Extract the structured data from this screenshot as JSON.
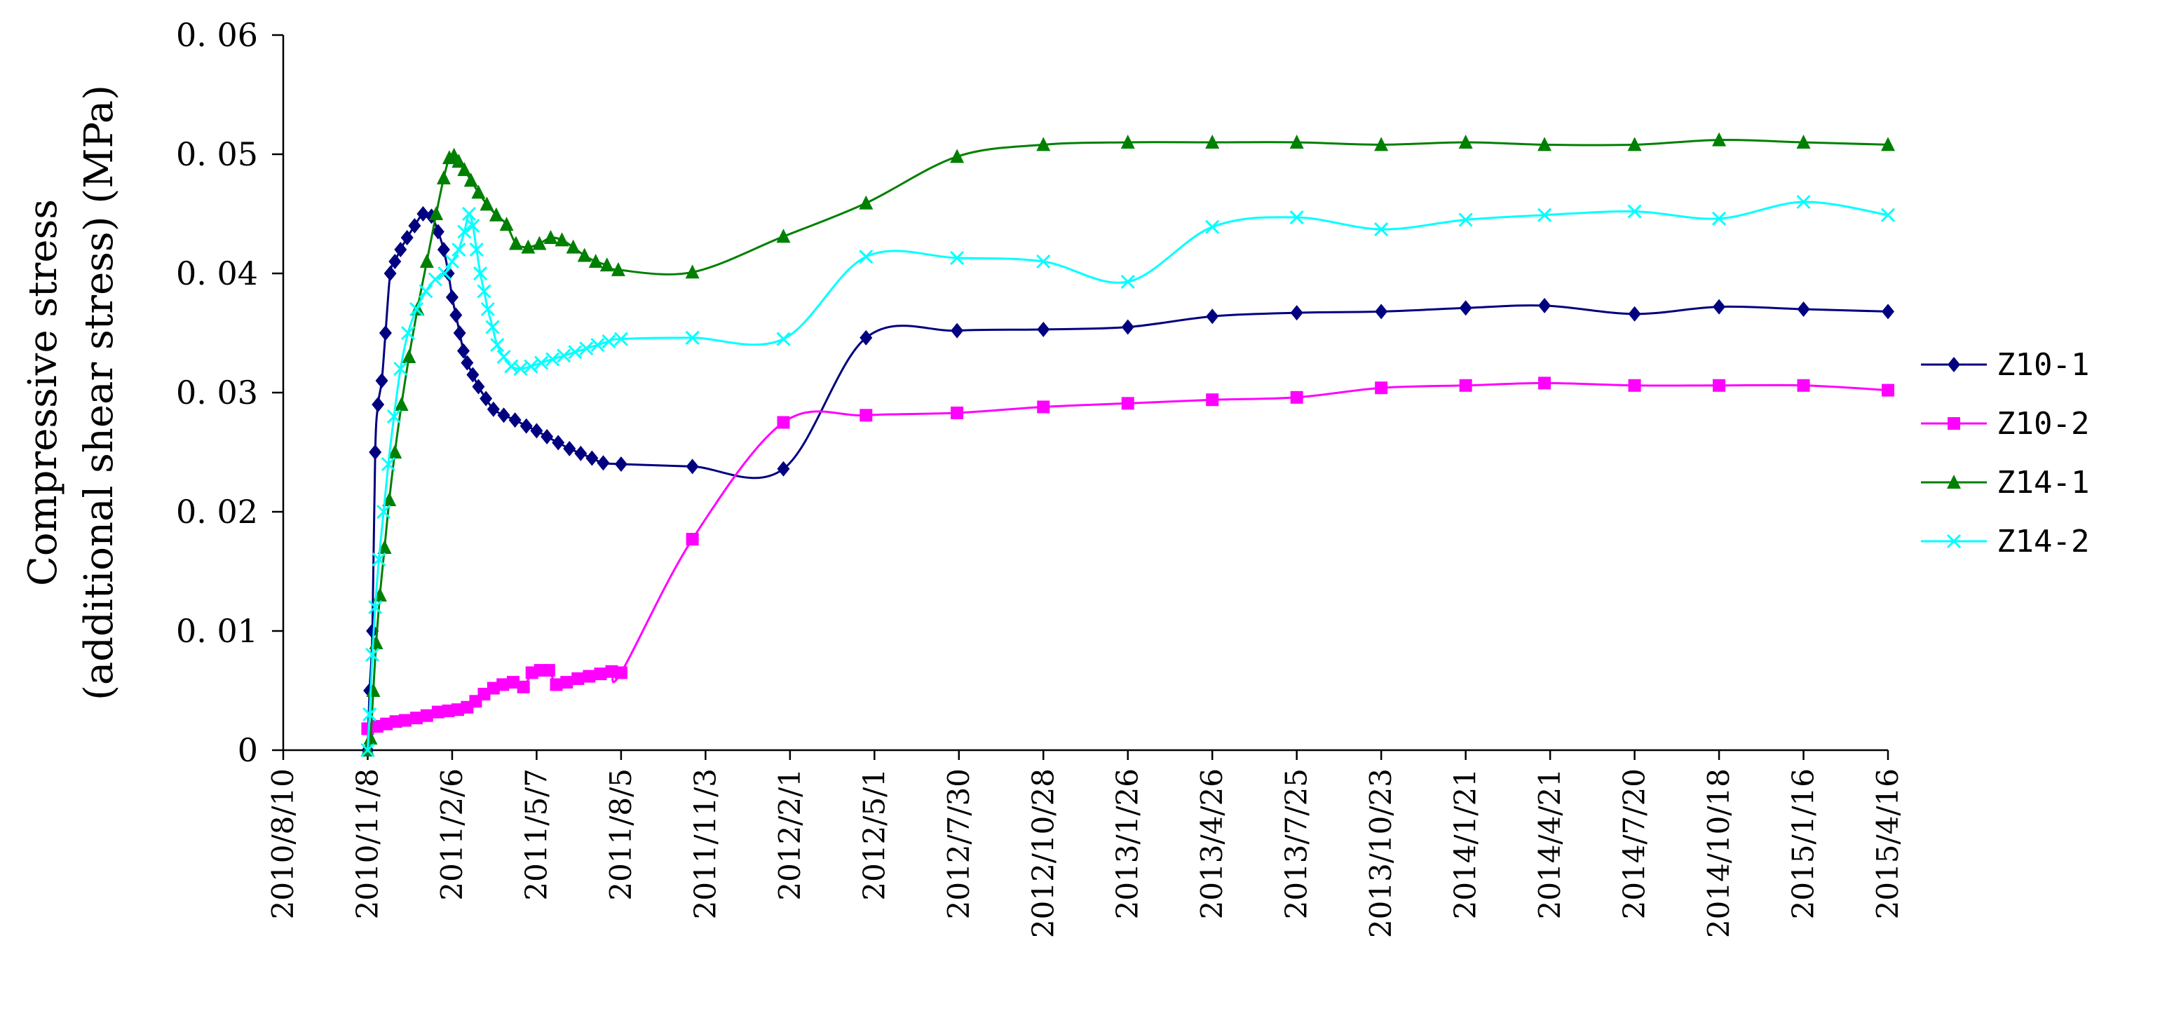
{
  "chart_data": {
    "type": "line",
    "ylabel": [
      "Compressive stress",
      "(additional shear stress) (MPa)"
    ],
    "ylim": [
      0,
      0.06
    ],
    "yticks": [
      0,
      0.01,
      0.02,
      0.03,
      0.04,
      0.05,
      0.06
    ],
    "ytick_labels": [
      "0",
      "0. 01",
      "0. 02",
      "0. 03",
      "0. 04",
      "0. 05",
      "0. 06"
    ],
    "xlim": [
      "2010/8/10",
      "2015/4/16"
    ],
    "xtick_labels": [
      "2010/8/10",
      "2010/11/8",
      "2011/2/6",
      "2011/5/7",
      "2011/8/5",
      "2011/11/3",
      "2012/2/1",
      "2012/5/1",
      "2012/7/30",
      "2012/10/28",
      "2013/1/26",
      "2013/4/26",
      "2013/7/25",
      "2013/10/23",
      "2014/1/21",
      "2014/4/21",
      "2014/7/20",
      "2014/10/18",
      "2015/1/16",
      "2015/4/16"
    ],
    "grid": false,
    "legend_position": "right",
    "series": [
      {
        "name": "Z10-1",
        "color": "#000080",
        "marker": "diamond",
        "points": [
          [
            "2010/11/8",
            0.0
          ],
          [
            "2010/11/10",
            0.005
          ],
          [
            "2010/11/13",
            0.01
          ],
          [
            "2010/11/16",
            0.025
          ],
          [
            "2010/11/19",
            0.029
          ],
          [
            "2010/11/23",
            0.031
          ],
          [
            "2010/11/27",
            0.035
          ],
          [
            "2010/12/2",
            0.04
          ],
          [
            "2010/12/7",
            0.041
          ],
          [
            "2010/12/13",
            0.042
          ],
          [
            "2010/12/20",
            0.043
          ],
          [
            "2010/12/28",
            0.044
          ],
          [
            "2011/1/6",
            0.045
          ],
          [
            "2011/1/15",
            0.0448
          ],
          [
            "2011/1/22",
            0.0435
          ],
          [
            "2011/1/28",
            0.042
          ],
          [
            "2011/2/2",
            0.04
          ],
          [
            "2011/2/6",
            0.038
          ],
          [
            "2011/2/10",
            0.0365
          ],
          [
            "2011/2/14",
            0.035
          ],
          [
            "2011/2/18",
            0.0335
          ],
          [
            "2011/2/22",
            0.0325
          ],
          [
            "2011/2/28",
            0.0315
          ],
          [
            "2011/3/6",
            0.0305
          ],
          [
            "2011/3/14",
            0.0295
          ],
          [
            "2011/3/22",
            0.0286
          ],
          [
            "2011/4/2",
            0.0281
          ],
          [
            "2011/4/14",
            0.0277
          ],
          [
            "2011/4/26",
            0.0272
          ],
          [
            "2011/5/7",
            0.0268
          ],
          [
            "2011/5/18",
            0.0263
          ],
          [
            "2011/5/30",
            0.0258
          ],
          [
            "2011/6/11",
            0.0253
          ],
          [
            "2011/6/23",
            0.0249
          ],
          [
            "2011/7/5",
            0.0245
          ],
          [
            "2011/7/17",
            0.0241
          ],
          [
            "2011/8/5",
            0.024
          ],
          [
            "2011/10/20",
            0.0238
          ],
          [
            "2012/1/25",
            0.0236
          ],
          [
            "2012/4/22",
            0.0346
          ],
          [
            "2012/7/28",
            0.0352
          ],
          [
            "2012/10/28",
            0.0353
          ],
          [
            "2013/1/26",
            0.0355
          ],
          [
            "2013/4/26",
            0.0364
          ],
          [
            "2013/7/25",
            0.0367
          ],
          [
            "2013/10/23",
            0.0368
          ],
          [
            "2014/1/21",
            0.0371
          ],
          [
            "2014/4/15",
            0.0373
          ],
          [
            "2014/7/20",
            0.0366
          ],
          [
            "2014/10/18",
            0.0372
          ],
          [
            "2015/1/16",
            0.037
          ],
          [
            "2015/4/16",
            0.0368
          ]
        ]
      },
      {
        "name": "Z10-2",
        "color": "#ff00ff",
        "marker": "square",
        "points": [
          [
            "2010/11/8",
            0.0018
          ],
          [
            "2010/11/18",
            0.002
          ],
          [
            "2010/11/28",
            0.0022
          ],
          [
            "2010/12/8",
            0.0024
          ],
          [
            "2010/12/18",
            0.0025
          ],
          [
            "2010/12/30",
            0.0027
          ],
          [
            "2011/1/10",
            0.0029
          ],
          [
            "2011/1/22",
            0.0032
          ],
          [
            "2011/2/2",
            0.0033
          ],
          [
            "2011/2/12",
            0.0034
          ],
          [
            "2011/2/22",
            0.0036
          ],
          [
            "2011/3/3",
            0.0041
          ],
          [
            "2011/3/12",
            0.0047
          ],
          [
            "2011/3/22",
            0.0052
          ],
          [
            "2011/4/1",
            0.0055
          ],
          [
            "2011/4/12",
            0.0057
          ],
          [
            "2011/4/23",
            0.0053
          ],
          [
            "2011/5/2",
            0.0065
          ],
          [
            "2011/5/11",
            0.0067
          ],
          [
            "2011/5/20",
            0.0067
          ],
          [
            "2011/5/28",
            0.0055
          ],
          [
            "2011/6/8",
            0.0057
          ],
          [
            "2011/6/20",
            0.006
          ],
          [
            "2011/7/2",
            0.0062
          ],
          [
            "2011/7/14",
            0.0064
          ],
          [
            "2011/7/26",
            0.0066
          ],
          [
            "2011/8/5",
            0.0065
          ],
          [
            "2011/10/20",
            0.0177
          ],
          [
            "2012/1/25",
            0.0275
          ],
          [
            "2012/4/22",
            0.0281
          ],
          [
            "2012/7/28",
            0.0283
          ],
          [
            "2012/10/28",
            0.0288
          ],
          [
            "2013/1/26",
            0.0291
          ],
          [
            "2013/4/26",
            0.0294
          ],
          [
            "2013/7/25",
            0.0296
          ],
          [
            "2013/10/23",
            0.0304
          ],
          [
            "2014/1/21",
            0.0306
          ],
          [
            "2014/4/15",
            0.0308
          ],
          [
            "2014/7/20",
            0.0306
          ],
          [
            "2014/10/18",
            0.0306
          ],
          [
            "2015/1/16",
            0.0306
          ],
          [
            "2015/4/16",
            0.0302
          ]
        ]
      },
      {
        "name": "Z14-1",
        "color": "#008000",
        "marker": "triangle",
        "points": [
          [
            "2010/11/8",
            0.0
          ],
          [
            "2010/11/11",
            0.001
          ],
          [
            "2010/11/14",
            0.005
          ],
          [
            "2010/11/17",
            0.009
          ],
          [
            "2010/11/21",
            0.013
          ],
          [
            "2010/11/26",
            0.017
          ],
          [
            "2010/12/1",
            0.021
          ],
          [
            "2010/12/7",
            0.025
          ],
          [
            "2010/12/14",
            0.029
          ],
          [
            "2010/12/22",
            0.033
          ],
          [
            "2010/12/31",
            0.037
          ],
          [
            "2011/1/10",
            0.041
          ],
          [
            "2011/1/20",
            0.045
          ],
          [
            "2011/1/28",
            0.048
          ],
          [
            "2011/2/3",
            0.0497
          ],
          [
            "2011/2/8",
            0.0499
          ],
          [
            "2011/2/13",
            0.0494
          ],
          [
            "2011/2/19",
            0.0487
          ],
          [
            "2011/2/26",
            0.0478
          ],
          [
            "2011/3/6",
            0.0468
          ],
          [
            "2011/3/15",
            0.0458
          ],
          [
            "2011/3/25",
            0.0449
          ],
          [
            "2011/4/5",
            0.0441
          ],
          [
            "2011/4/15",
            0.0425
          ],
          [
            "2011/4/28",
            0.0422
          ],
          [
            "2011/5/10",
            0.0425
          ],
          [
            "2011/5/22",
            0.043
          ],
          [
            "2011/6/3",
            0.0428
          ],
          [
            "2011/6/15",
            0.0422
          ],
          [
            "2011/6/27",
            0.0415
          ],
          [
            "2011/7/9",
            0.041
          ],
          [
            "2011/7/21",
            0.0407
          ],
          [
            "2011/8/2",
            0.0403
          ],
          [
            "2011/10/20",
            0.0401
          ],
          [
            "2012/1/25",
            0.0431
          ],
          [
            "2012/4/22",
            0.0459
          ],
          [
            "2012/7/28",
            0.0498
          ],
          [
            "2012/10/28",
            0.0508
          ],
          [
            "2013/1/26",
            0.051
          ],
          [
            "2013/4/26",
            0.051
          ],
          [
            "2013/7/25",
            0.051
          ],
          [
            "2013/10/23",
            0.0508
          ],
          [
            "2014/1/21",
            0.051
          ],
          [
            "2014/4/15",
            0.0508
          ],
          [
            "2014/7/20",
            0.0508
          ],
          [
            "2014/10/18",
            0.0512
          ],
          [
            "2015/1/16",
            0.051
          ],
          [
            "2015/4/16",
            0.0508
          ]
        ]
      },
      {
        "name": "Z14-2",
        "color": "#00ffff",
        "marker": "x",
        "points": [
          [
            "2010/11/8",
            0.0
          ],
          [
            "2010/11/10",
            0.003
          ],
          [
            "2010/11/13",
            0.008
          ],
          [
            "2010/11/16",
            0.012
          ],
          [
            "2010/11/20",
            0.016
          ],
          [
            "2010/11/25",
            0.02
          ],
          [
            "2010/11/30",
            0.024
          ],
          [
            "2010/12/6",
            0.028
          ],
          [
            "2010/12/13",
            0.032
          ],
          [
            "2010/12/21",
            0.035
          ],
          [
            "2010/12/30",
            0.037
          ],
          [
            "2011/1/9",
            0.0385
          ],
          [
            "2011/1/19",
            0.0395
          ],
          [
            "2011/1/29",
            0.04
          ],
          [
            "2011/2/6",
            0.041
          ],
          [
            "2011/2/13",
            0.042
          ],
          [
            "2011/2/19",
            0.0435
          ],
          [
            "2011/2/24",
            0.045
          ],
          [
            "2011/2/28",
            0.044
          ],
          [
            "2011/3/4",
            0.042
          ],
          [
            "2011/3/8",
            0.04
          ],
          [
            "2011/3/12",
            0.0385
          ],
          [
            "2011/3/16",
            0.037
          ],
          [
            "2011/3/21",
            0.0355
          ],
          [
            "2011/3/26",
            0.034
          ],
          [
            "2011/4/2",
            0.033
          ],
          [
            "2011/4/10",
            0.0322
          ],
          [
            "2011/4/20",
            0.032
          ],
          [
            "2011/5/1",
            0.0322
          ],
          [
            "2011/5/12",
            0.0325
          ],
          [
            "2011/5/24",
            0.0328
          ],
          [
            "2011/6/5",
            0.0331
          ],
          [
            "2011/6/17",
            0.0334
          ],
          [
            "2011/6/29",
            0.0337
          ],
          [
            "2011/7/11",
            0.034
          ],
          [
            "2011/7/23",
            0.0343
          ],
          [
            "2011/8/5",
            0.0345
          ],
          [
            "2011/10/20",
            0.0346
          ],
          [
            "2012/1/25",
            0.0345
          ],
          [
            "2012/4/22",
            0.0414
          ],
          [
            "2012/7/28",
            0.0413
          ],
          [
            "2012/10/28",
            0.041
          ],
          [
            "2013/1/26",
            0.0393
          ],
          [
            "2013/4/26",
            0.0439
          ],
          [
            "2013/7/25",
            0.0447
          ],
          [
            "2013/10/23",
            0.0437
          ],
          [
            "2014/1/21",
            0.0445
          ],
          [
            "2014/4/15",
            0.0449
          ],
          [
            "2014/7/20",
            0.0452
          ],
          [
            "2014/10/18",
            0.0446
          ],
          [
            "2015/1/16",
            0.046
          ],
          [
            "2015/4/16",
            0.0449
          ]
        ]
      }
    ]
  }
}
